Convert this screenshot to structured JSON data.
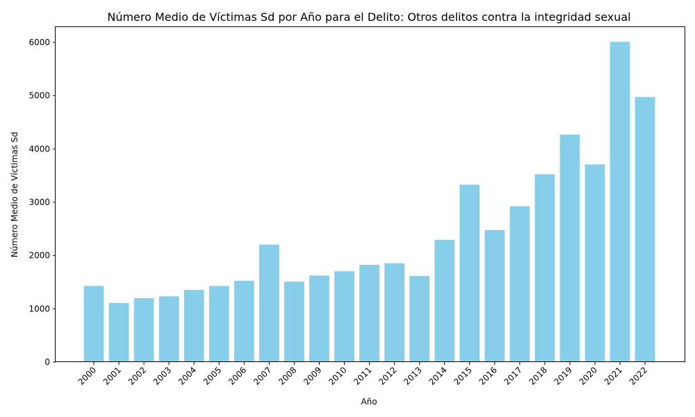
{
  "chart_data": {
    "type": "bar",
    "title": "Número Medio de Víctimas Sd por Año para el Delito: Otros delitos contra la integridad sexual",
    "xlabel": "Año",
    "ylabel": "Número Medio de Víctimas Sd",
    "categories": [
      "2000",
      "2001",
      "2002",
      "2003",
      "2004",
      "2005",
      "2006",
      "2007",
      "2008",
      "2009",
      "2010",
      "2011",
      "2012",
      "2013",
      "2014",
      "2015",
      "2016",
      "2017",
      "2018",
      "2019",
      "2020",
      "2021",
      "2022"
    ],
    "values": [
      1430,
      1110,
      1200,
      1235,
      1355,
      1430,
      1525,
      2205,
      1510,
      1625,
      1705,
      1825,
      1855,
      1615,
      2295,
      3330,
      2480,
      2925,
      3525,
      4270,
      3710,
      6010,
      4975
    ],
    "yticks": [
      0,
      1000,
      2000,
      3000,
      4000,
      5000,
      6000
    ],
    "ylim": [
      0,
      6300
    ],
    "color": "#87CEEB",
    "grid": false,
    "legend": "none"
  }
}
